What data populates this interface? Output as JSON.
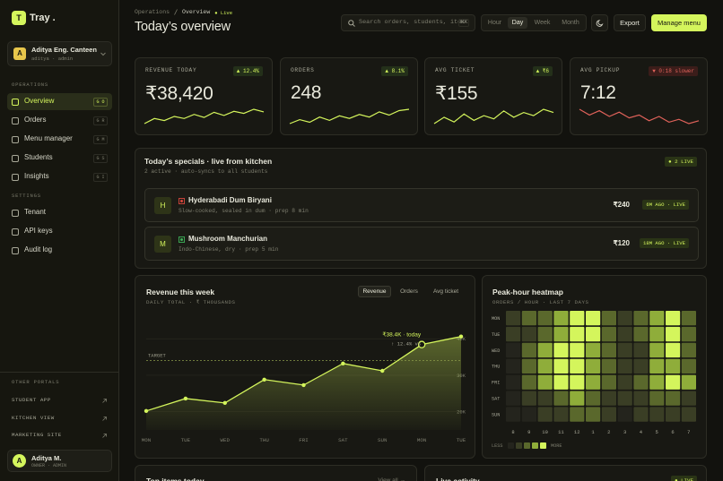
{
  "sidebar": {
    "logo": "T",
    "brand": "Tray .",
    "tenant": {
      "initial": "A",
      "name": "Aditya Eng. Canteen",
      "role": "aditya · admin"
    },
    "sections": [
      {
        "title": "OPERATIONS",
        "items": [
          {
            "label": "Overview",
            "shortcut": "G O",
            "active": true
          },
          {
            "label": "Orders",
            "shortcut": "G R"
          },
          {
            "label": "Menu manager",
            "shortcut": "G M"
          },
          {
            "label": "Students",
            "shortcut": "G S"
          },
          {
            "label": "Insights",
            "shortcut": "G I"
          }
        ]
      },
      {
        "title": "SETTINGS",
        "items": [
          {
            "label": "Tenant"
          },
          {
            "label": "API keys"
          },
          {
            "label": "Audit log"
          }
        ]
      }
    ],
    "portals": {
      "title": "OTHER PORTALS",
      "items": [
        "STUDENT APP",
        "KITCHEN VIEW",
        "MARKETING SITE"
      ]
    },
    "user": {
      "initial": "A",
      "name": "Aditya M.",
      "role": "OWNER · ADMIN"
    }
  },
  "header": {
    "breadcrumb": [
      "Operations",
      "Overview"
    ],
    "status": "● Live",
    "title": "Today’s overview",
    "search_placeholder": "Search orders, students, ite…",
    "search_shortcut": "⌘K",
    "ranges": [
      "Hour",
      "Day",
      "Week",
      "Month"
    ],
    "active_range": 1,
    "actions": [
      "Export",
      "Manage menu"
    ]
  },
  "kpis": [
    {
      "label": "REVENUE TODAY",
      "value": "₹38,420",
      "delta": "▲ 12.4%",
      "trend": "up",
      "color": "#d4f55c",
      "spark": [
        4,
        5,
        4.6,
        5.4,
        5,
        5.8,
        5.2,
        6.2,
        5.6,
        6.4,
        6,
        6.8,
        6.3
      ]
    },
    {
      "label": "ORDERS",
      "value": "248",
      "delta": "▲ 8.1%",
      "trend": "up",
      "color": "#d4f55c",
      "spark": [
        4,
        4.6,
        4.2,
        5,
        4.5,
        5.2,
        4.8,
        5.4,
        5,
        5.8,
        5.3,
        6,
        6.2
      ]
    },
    {
      "label": "AVG TICKET",
      "value": "₹155",
      "delta": "▲ ₹6",
      "trend": "up",
      "color": "#d4f55c",
      "spark": [
        5,
        5.4,
        5.1,
        5.6,
        5.2,
        5.5,
        5.3,
        5.8,
        5.4,
        5.7,
        5.5,
        5.9,
        5.7
      ]
    },
    {
      "label": "AVG PICKUP",
      "value": "7:12",
      "delta": "▼ 0:18 slower",
      "trend": "down",
      "color": "#e0625a",
      "spark": [
        6,
        5.6,
        5.9,
        5.5,
        5.8,
        5.4,
        5.6,
        5.2,
        5.5,
        5.1,
        5.3,
        5,
        5.2
      ]
    }
  ],
  "specials": {
    "title": "Today’s specials · live from kitchen",
    "subtitle": "2 active · auto-syncs to all students",
    "badge": "● 2 LIVE",
    "items": [
      {
        "initial": "H",
        "diet": "non-veg",
        "name": "Hyderabadi Dum Biryani",
        "desc": "Slow-cooked, sealed in dum · prep 8 min",
        "price": "₹240",
        "status": "6M AGO · LIVE"
      },
      {
        "initial": "M",
        "diet": "veg",
        "name": "Mushroom Manchurian",
        "desc": "Indo-Chinese, dry · prep 5 min",
        "price": "₹120",
        "status": "18M AGO · LIVE"
      }
    ]
  },
  "revenue_chart": {
    "type": "line",
    "title": "Revenue this week",
    "subtitle": "DAILY TOTAL · ₹ THOUSANDS",
    "tabs": [
      "Revenue",
      "Orders",
      "Avg ticket"
    ],
    "active_tab": 0,
    "categories": [
      "MON",
      "TUE",
      "WED",
      "THU",
      "FRI",
      "SAT",
      "SUN",
      "MON",
      "TUE"
    ],
    "values": [
      20.2,
      23.6,
      22.4,
      28.8,
      27.3,
      33.2,
      31.2,
      38.4,
      40.6
    ],
    "color": "#d4f55c",
    "ylim": [
      15,
      42
    ],
    "yticks": [
      {
        "value": 20,
        "label": "20K"
      },
      {
        "value": 30,
        "label": "30K"
      },
      {
        "value": 40,
        "label": "40K"
      }
    ],
    "target": {
      "label": "TARGET",
      "value": 34
    },
    "highlight": {
      "index": 7,
      "label": "₹38.4K · today",
      "sublabel": "↑ 12.4% vs"
    }
  },
  "heatmap": {
    "type": "heatmap",
    "title": "Peak-hour heatmap",
    "subtitle": "ORDERS / HOUR · LAST 7 DAYS",
    "rows": [
      "MON",
      "TUE",
      "WED",
      "THU",
      "FRI",
      "SAT",
      "SUN"
    ],
    "columns": [
      "8",
      "9",
      "10",
      "11",
      "12",
      "1",
      "2",
      "3",
      "4",
      "5",
      "6",
      "7"
    ],
    "values": [
      [
        1,
        2,
        2,
        3,
        4,
        4,
        2,
        1,
        2,
        3,
        4,
        2
      ],
      [
        1,
        1,
        2,
        3,
        4,
        4,
        2,
        1,
        2,
        3,
        4,
        2
      ],
      [
        0,
        2,
        3,
        4,
        4,
        3,
        2,
        1,
        1,
        3,
        4,
        2
      ],
      [
        0,
        2,
        3,
        4,
        4,
        3,
        2,
        1,
        1,
        3,
        3,
        2
      ],
      [
        0,
        2,
        3,
        4,
        4,
        3,
        2,
        1,
        2,
        3,
        4,
        3
      ],
      [
        0,
        1,
        1,
        2,
        3,
        2,
        1,
        1,
        1,
        2,
        2,
        1
      ],
      [
        0,
        0,
        1,
        1,
        2,
        2,
        1,
        0,
        1,
        1,
        1,
        1
      ]
    ],
    "colors": [
      "#24241d",
      "#3a3e25",
      "#5a682c",
      "#8fad3a",
      "#d4f55c"
    ],
    "legend": {
      "less": "LESS",
      "more": "MORE"
    }
  },
  "bottom": [
    {
      "title": "Top items today",
      "action": "View all →"
    },
    {
      "title": "Live activity",
      "badge": "● LIVE"
    }
  ]
}
